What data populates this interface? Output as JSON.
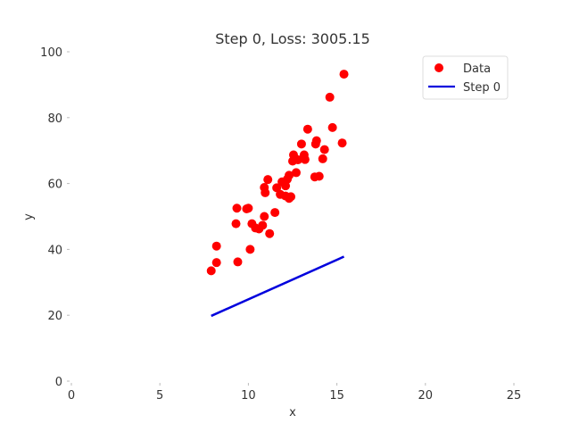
{
  "chart_data": {
    "type": "scatter",
    "title": "Step 0, Loss: 3005.15",
    "xlabel": "x",
    "ylabel": "y",
    "xlim": [
      0,
      25
    ],
    "ylim": [
      0,
      100
    ],
    "xticks": [
      "0",
      "5",
      "10",
      "15",
      "20",
      "25"
    ],
    "yticks": [
      "0",
      "20",
      "40",
      "60",
      "80",
      "100"
    ],
    "grid": false,
    "legend_position": "top-right",
    "series": [
      {
        "name": "Data",
        "kind": "scatter",
        "color": "#ff0000",
        "points": [
          [
            7.9,
            33.5
          ],
          [
            8.2,
            41.0
          ],
          [
            8.2,
            36.0
          ],
          [
            9.4,
            36.2
          ],
          [
            9.3,
            47.8
          ],
          [
            9.35,
            52.5
          ],
          [
            9.9,
            52.3
          ],
          [
            10.0,
            52.5
          ],
          [
            10.1,
            40.0
          ],
          [
            10.2,
            47.8
          ],
          [
            10.4,
            46.5
          ],
          [
            10.6,
            46.2
          ],
          [
            10.8,
            47.3
          ],
          [
            10.9,
            58.8
          ],
          [
            10.95,
            57.2
          ],
          [
            10.9,
            50.0
          ],
          [
            11.1,
            61.2
          ],
          [
            11.2,
            44.8
          ],
          [
            11.5,
            51.2
          ],
          [
            11.6,
            58.7
          ],
          [
            11.8,
            56.7
          ],
          [
            11.9,
            60.5
          ],
          [
            12.1,
            56.2
          ],
          [
            12.1,
            59.3
          ],
          [
            12.2,
            61.3
          ],
          [
            12.3,
            62.5
          ],
          [
            12.3,
            55.5
          ],
          [
            12.4,
            56.0
          ],
          [
            12.5,
            66.8
          ],
          [
            12.55,
            68.7
          ],
          [
            12.8,
            67.2
          ],
          [
            12.7,
            63.3
          ],
          [
            13.0,
            72.0
          ],
          [
            13.15,
            68.7
          ],
          [
            13.2,
            67.3
          ],
          [
            13.35,
            76.5
          ],
          [
            13.8,
            72.0
          ],
          [
            13.85,
            73.0
          ],
          [
            13.75,
            62.0
          ],
          [
            14.0,
            62.2
          ],
          [
            14.2,
            67.5
          ],
          [
            14.3,
            70.3
          ],
          [
            14.6,
            86.2
          ],
          [
            14.75,
            77.0
          ],
          [
            15.3,
            72.3
          ],
          [
            15.4,
            93.2
          ]
        ]
      },
      {
        "name": "Step 0",
        "kind": "line",
        "color": "#0000dd",
        "points": [
          [
            7.9,
            19.8
          ],
          [
            15.4,
            37.8
          ]
        ]
      }
    ]
  }
}
